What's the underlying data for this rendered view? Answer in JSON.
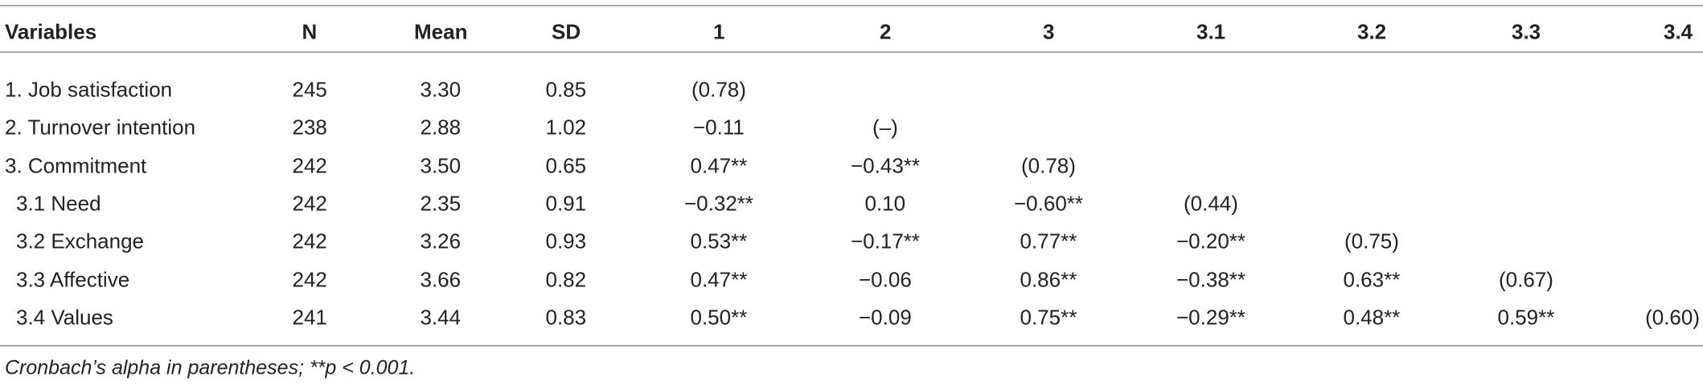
{
  "table": {
    "header": [
      "Variables",
      "N",
      "Mean",
      "SD",
      "1",
      "2",
      "3",
      "3.1",
      "3.2",
      "3.3",
      "3.4"
    ],
    "rows": [
      [
        "1. Job satisfaction",
        "245",
        "3.30",
        "0.85",
        "(0.78)"
      ],
      [
        "2. Turnover intention",
        "238",
        "2.88",
        "1.02",
        "−0.11",
        "(–)"
      ],
      [
        "3. Commitment",
        "242",
        "3.50",
        "0.65",
        "0.47**",
        "−0.43**",
        "(0.78)"
      ],
      [
        "3.1 Need",
        "242",
        "2.35",
        "0.91",
        "−0.32**",
        "0.10",
        "−0.60**",
        "(0.44)"
      ],
      [
        "3.2 Exchange",
        "242",
        "3.26",
        "0.93",
        "0.53**",
        "−0.17**",
        "0.77**",
        "−0.20**",
        "(0.75)"
      ],
      [
        "3.3 Affective",
        "242",
        "3.66",
        "0.82",
        "0.47**",
        "−0.06",
        "0.86**",
        "−0.38**",
        "0.63**",
        "(0.67)"
      ],
      [
        "3.4 Values",
        "241",
        "3.44",
        "0.83",
        "0.50**",
        "−0.09",
        "0.75**",
        "−0.29**",
        "0.48**",
        "0.59**",
        "(0.60)"
      ]
    ]
  },
  "footnote": "Cronbach’s alpha in parentheses; **p < 0.001."
}
